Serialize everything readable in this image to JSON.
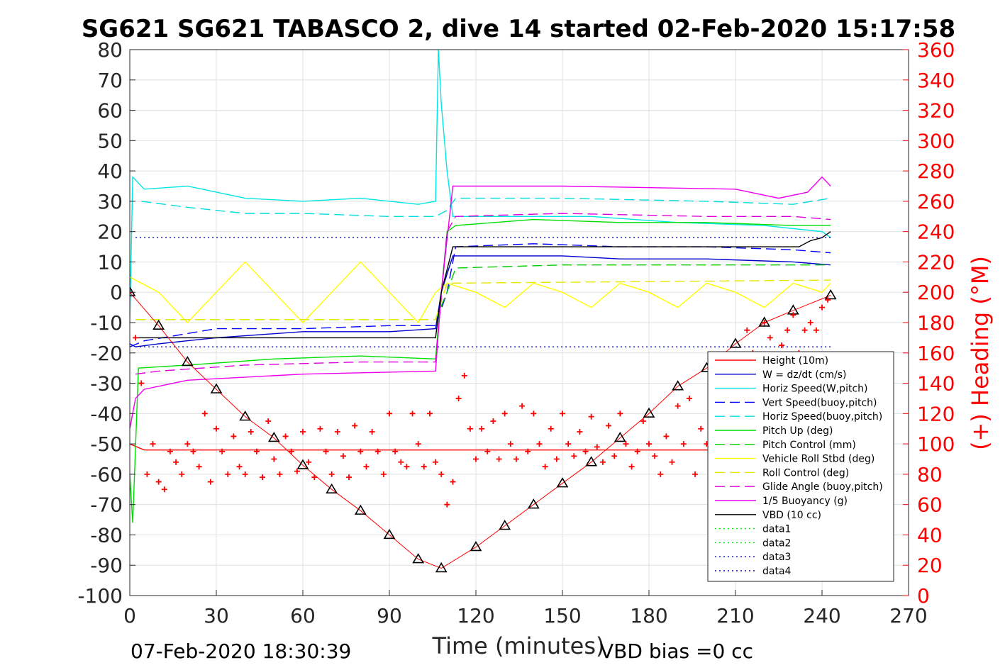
{
  "chart_data": {
    "type": "line",
    "title": "SG621 SG621 TABASCO 2, dive 14 started 02-Feb-2020 15:17:58",
    "xlabel": "Time (minutes)",
    "ylabel_right": "(+) Heading (°M)",
    "xlim": [
      0,
      270
    ],
    "ylim": [
      -100,
      80
    ],
    "ylim_right": [
      0,
      360
    ],
    "x_ticks": [
      0,
      30,
      60,
      90,
      120,
      150,
      180,
      210,
      240,
      270
    ],
    "y_ticks": [
      -100,
      -90,
      -80,
      -70,
      -60,
      -50,
      -40,
      -30,
      -20,
      -10,
      0,
      10,
      20,
      30,
      40,
      50,
      60,
      70,
      80
    ],
    "y_ticks_right": [
      0,
      20,
      40,
      60,
      80,
      100,
      120,
      140,
      160,
      180,
      200,
      220,
      240,
      260,
      280,
      300,
      320,
      340,
      360
    ],
    "grid": true,
    "legend_position": "lower-right",
    "footer_left": "07-Feb-2020 18:30:39",
    "footer_right": "VBD bias =0 cc",
    "colors": {
      "height": "#ff0000",
      "w": "#0000cc",
      "horiz_w": "#00e5e5",
      "vert_buoy": "#0000ff",
      "horiz_buoy": "#00dddd",
      "pitch": "#00dd00",
      "pitch_ctrl": "#00cc00",
      "roll": "#ffff00",
      "roll_ctrl": "#e6e600",
      "glide": "#dd00dd",
      "buoy": "#ee00ee",
      "vbd": "#000000",
      "heading": "#ff0000",
      "depth": "#000000"
    },
    "series": [
      {
        "name": "Height (10m)",
        "style": "solid",
        "color": "#ff0000",
        "x": [
          0,
          5,
          10,
          108,
          110,
          243
        ],
        "y": [
          -50,
          -52,
          -52,
          -52,
          -52,
          -52
        ]
      },
      {
        "name": "W = dz/dt (cm/s)",
        "style": "solid",
        "color": "#0000cc",
        "x": [
          0,
          2,
          10,
          30,
          60,
          90,
          106,
          108,
          112,
          130,
          150,
          170,
          200,
          230,
          243
        ],
        "y": [
          -17,
          -18,
          -17,
          -15,
          -13,
          -13,
          -12,
          0,
          12,
          12,
          12,
          11,
          11,
          10,
          9
        ]
      },
      {
        "name": "Horiz Speed(W,pitch)",
        "style": "solid",
        "color": "#00e5e5",
        "x": [
          0,
          1,
          5,
          20,
          40,
          60,
          80,
          100,
          106,
          107,
          108,
          110,
          112,
          130,
          160,
          190,
          220,
          240,
          243
        ],
        "y": [
          -10,
          38,
          34,
          35,
          31,
          30,
          31,
          29,
          30,
          80,
          62,
          40,
          25,
          25,
          25,
          23,
          22,
          20,
          18
        ]
      },
      {
        "name": "Vert Speed(buoy,pitch)",
        "style": "dashed",
        "color": "#0000ff",
        "x": [
          0,
          5,
          30,
          60,
          90,
          106,
          110,
          113,
          140,
          170,
          200,
          230,
          243
        ],
        "y": [
          -18,
          -16,
          -12,
          -12,
          -11,
          -11,
          0,
          15,
          16,
          15,
          15,
          14,
          13
        ]
      },
      {
        "name": "Horiz Speed(buoy,pitch)",
        "style": "dashed",
        "color": "#00dddd",
        "x": [
          4,
          20,
          40,
          60,
          90,
          106,
          110,
          113,
          150,
          200,
          230,
          243
        ],
        "y": [
          30,
          28,
          26,
          26,
          25,
          25,
          27,
          31,
          31,
          30,
          29,
          31
        ]
      },
      {
        "name": "Pitch Up (deg)",
        "style": "solid",
        "color": "#00dd00",
        "x": [
          0,
          1,
          3,
          20,
          50,
          80,
          106,
          108,
          110,
          113,
          140,
          170,
          200,
          230,
          243
        ],
        "y": [
          -60,
          -76,
          -25,
          -24,
          -22,
          -21,
          -22,
          0,
          20,
          22,
          24,
          23,
          23,
          22,
          22
        ]
      },
      {
        "name": "Pitch Control (mm)",
        "style": "dashed",
        "color": "#00cc00",
        "x": [
          2,
          40,
          80,
          106,
          110,
          113,
          150,
          200,
          243
        ],
        "y": [
          -9,
          -9,
          -9,
          -9,
          0,
          8,
          9,
          9,
          9
        ]
      },
      {
        "name": "Vehicle Roll Stbd (deg)",
        "style": "solid",
        "color": "#ffff00",
        "x": [
          0,
          10,
          20,
          30,
          40,
          50,
          60,
          70,
          80,
          90,
          100,
          106,
          110,
          120,
          130,
          140,
          150,
          160,
          170,
          180,
          190,
          200,
          210,
          220,
          230,
          240,
          243
        ],
        "y": [
          5,
          0,
          -10,
          0,
          10,
          0,
          -10,
          0,
          10,
          0,
          -10,
          0,
          3,
          0,
          -5,
          3,
          0,
          -5,
          3,
          0,
          -5,
          3,
          0,
          -5,
          3,
          0,
          3
        ]
      },
      {
        "name": "Roll Control (deg)",
        "style": "dashed",
        "color": "#e6e600",
        "x": [
          2,
          106,
          110,
          243
        ],
        "y": [
          -9,
          -9,
          3,
          4
        ]
      },
      {
        "name": "Glide Angle (buoy,pitch)",
        "style": "dashed",
        "color": "#dd00dd",
        "x": [
          2,
          10,
          40,
          80,
          106,
          110,
          113,
          150,
          200,
          230,
          243
        ],
        "y": [
          -27,
          -26,
          -24,
          -23,
          -23,
          20,
          25,
          26,
          25,
          25,
          24
        ]
      },
      {
        "name": "1/5 Buoyancy (g)",
        "style": "solid",
        "color": "#ee00ee",
        "x": [
          0,
          2,
          5,
          20,
          60,
          106,
          108,
          112,
          150,
          210,
          225,
          235,
          240,
          243
        ],
        "y": [
          -45,
          -35,
          -32,
          -29,
          -27,
          -26,
          0,
          35,
          35,
          34,
          31,
          33,
          38,
          35
        ]
      },
      {
        "name": "VBD (10 cc)",
        "style": "solid",
        "color": "#000000",
        "x": [
          2,
          106,
          108,
          112,
          200,
          232,
          236,
          240,
          243
        ],
        "y": [
          -15,
          -15,
          0,
          15,
          15,
          15,
          17,
          18,
          20
        ]
      },
      {
        "name": "data1",
        "style": "dotted",
        "color": "#00ee00",
        "x": [],
        "y": []
      },
      {
        "name": "data2",
        "style": "dotted",
        "color": "#00ee00",
        "x": [],
        "y": []
      },
      {
        "name": "data3",
        "style": "dotted",
        "color": "#0000aa",
        "x": [
          2,
          243
        ],
        "y": [
          18,
          18
        ]
      },
      {
        "name": "data4",
        "style": "dotted",
        "color": "#0000aa",
        "x": [
          2,
          243
        ],
        "y": [
          -18,
          -18
        ]
      }
    ],
    "depth_profile": {
      "marker": "triangle",
      "color": "#000000",
      "x": [
        0,
        10,
        20,
        30,
        40,
        50,
        60,
        70,
        80,
        90,
        100,
        108,
        120,
        130,
        140,
        150,
        160,
        170,
        180,
        190,
        200,
        210,
        220,
        230,
        243
      ],
      "y": [
        0,
        -11,
        -23,
        -32,
        -41,
        -48,
        -57,
        -65,
        -72,
        -80,
        -88,
        -91,
        -84,
        -77,
        -70,
        -63,
        -56,
        -48,
        -40,
        -31,
        -25,
        -17,
        -10,
        -6,
        -1
      ]
    },
    "heading": {
      "marker": "plus",
      "color": "#ff0000",
      "axis": "right",
      "x": [
        0,
        2,
        4,
        6,
        8,
        10,
        12,
        14,
        16,
        18,
        20,
        22,
        24,
        26,
        28,
        30,
        32,
        34,
        36,
        38,
        40,
        42,
        44,
        46,
        48,
        50,
        52,
        54,
        56,
        58,
        60,
        62,
        64,
        66,
        68,
        70,
        72,
        74,
        76,
        78,
        80,
        82,
        84,
        86,
        88,
        90,
        92,
        94,
        96,
        98,
        100,
        102,
        104,
        106,
        108,
        110,
        112,
        114,
        116,
        118,
        120,
        122,
        124,
        126,
        128,
        130,
        132,
        134,
        136,
        138,
        140,
        142,
        144,
        146,
        148,
        150,
        152,
        154,
        156,
        158,
        160,
        162,
        164,
        166,
        168,
        170,
        172,
        174,
        176,
        178,
        180,
        182,
        184,
        186,
        188,
        190,
        192,
        194,
        196,
        198,
        200,
        202,
        204,
        206,
        208,
        210,
        212,
        214,
        216,
        218,
        220,
        222,
        224,
        226,
        228,
        230,
        232,
        234,
        236,
        238,
        240,
        242
      ],
      "y": [
        200,
        170,
        140,
        80,
        100,
        75,
        70,
        95,
        88,
        80,
        100,
        95,
        85,
        120,
        75,
        110,
        95,
        80,
        105,
        85,
        80,
        108,
        95,
        78,
        115,
        90,
        80,
        105,
        95,
        82,
        108,
        88,
        78,
        110,
        95,
        80,
        108,
        92,
        78,
        112,
        95,
        85,
        108,
        95,
        80,
        120,
        95,
        88,
        85,
        120,
        100,
        85,
        120,
        88,
        80,
        60,
        75,
        130,
        145,
        110,
        90,
        110,
        95,
        115,
        90,
        120,
        100,
        90,
        125,
        95,
        120,
        100,
        85,
        110,
        90,
        120,
        100,
        92,
        108,
        95,
        118,
        98,
        88,
        112,
        92,
        120,
        100,
        85,
        95,
        115,
        100,
        92,
        80,
        105,
        88,
        125,
        100,
        130,
        80,
        110,
        100,
        95,
        120,
        105,
        115,
        108,
        140,
        175,
        160,
        145,
        180,
        170,
        150,
        165,
        175,
        185,
        160,
        175,
        180,
        175,
        190,
        195
      ]
    }
  }
}
